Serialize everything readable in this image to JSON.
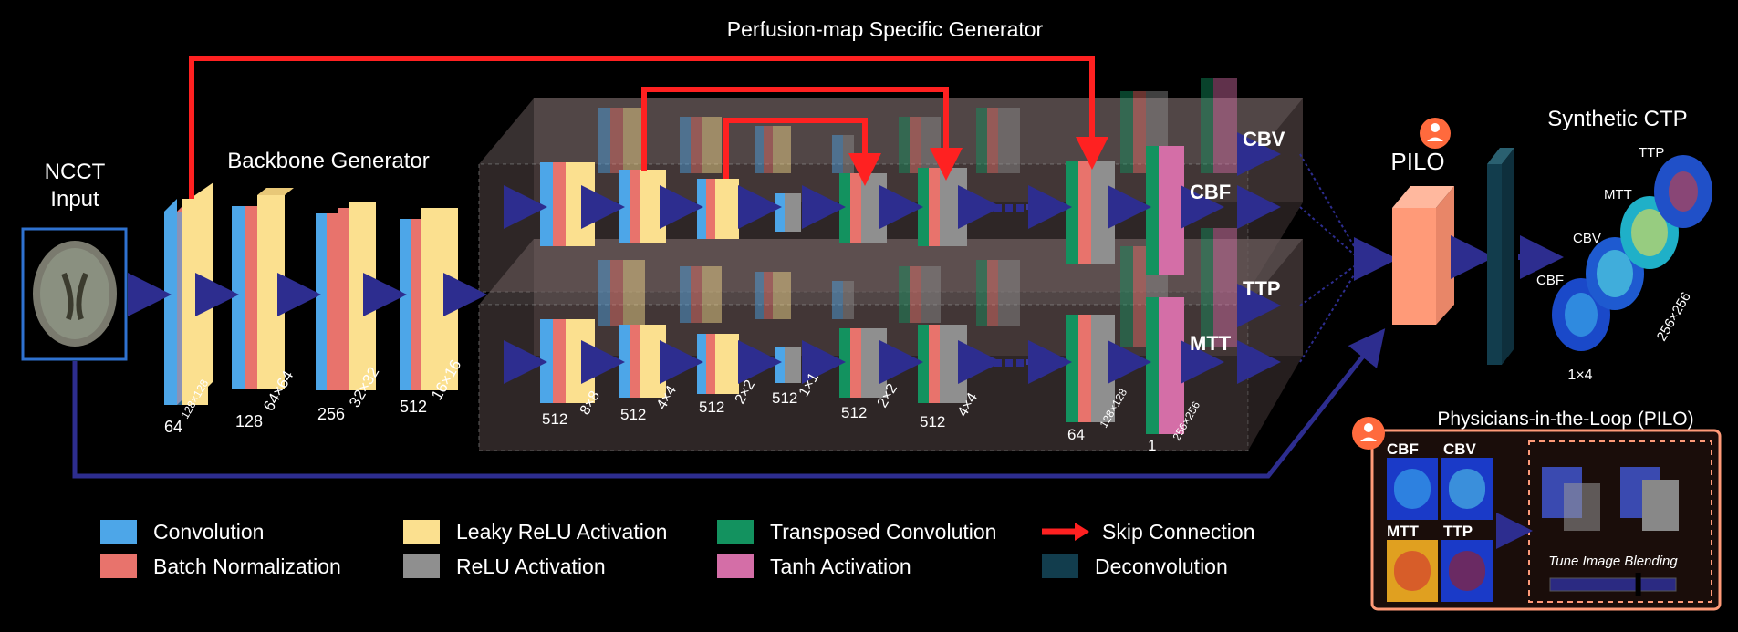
{
  "title": "Perfusion-map Specific Generator",
  "backbone_title": "Backbone Generator",
  "input": {
    "line1": "NCCT",
    "line2": "Input"
  },
  "backbone_layers": [
    {
      "channels": "64",
      "size": "128×128"
    },
    {
      "channels": "128",
      "size": "64×64"
    },
    {
      "channels": "256",
      "size": "32×32"
    },
    {
      "channels": "512",
      "size": "16×16"
    }
  ],
  "generator_layers": [
    {
      "channels": "512",
      "size": "8×8"
    },
    {
      "channels": "512",
      "size": "4×4"
    },
    {
      "channels": "512",
      "size": "2×2"
    },
    {
      "channels": "512",
      "size": "1×1"
    },
    {
      "channels": "512",
      "size": "2×2"
    },
    {
      "channels": "512",
      "size": "4×4"
    },
    {
      "channels": "64",
      "size": "128×128"
    },
    {
      "channels": "1",
      "size": "256×256"
    }
  ],
  "outputs": [
    "CBV",
    "CBF",
    "TTP",
    "MTT"
  ],
  "pilo_label": "PILO",
  "synthetic": {
    "title": "Synthetic CTP",
    "maps": [
      "TTP",
      "MTT",
      "CBV",
      "CBF"
    ],
    "count": "1×4",
    "size": "256×256"
  },
  "pilo_panel": {
    "title": "Physicians-in-the-Loop (PILO)",
    "maps": [
      "CBF",
      "CBV",
      "MTT",
      "TTP"
    ],
    "tune_label": "Tune Image Blending",
    "blend_level": 0.7
  },
  "legend": {
    "conv": "Convolution",
    "bn": "Batch Normalization",
    "lrelu": "Leaky ReLU Activation",
    "relu": "ReLU Activation",
    "tconv": "Transposed Convolution",
    "tanh": "Tanh Activation",
    "skip": "Skip Connection",
    "deconv": "Deconvolution"
  },
  "colors": {
    "conv": "#4da6e8",
    "bn": "#e8736c",
    "lrelu": "#fbe08f",
    "relu": "#8f8f8f",
    "tconv": "#13925f",
    "tanh": "#d46ea7",
    "skip": "#ff2121",
    "deconv": "#123d4d",
    "pilo": "#ff9a78",
    "flow": "#2d2d8f"
  }
}
